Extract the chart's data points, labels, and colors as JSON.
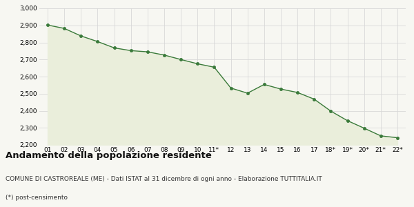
{
  "x_labels": [
    "01",
    "02",
    "03",
    "04",
    "05",
    "06",
    "07",
    "08",
    "09",
    "10",
    "11*",
    "12",
    "13",
    "14",
    "15",
    "16",
    "17",
    "18*",
    "19*",
    "20*",
    "21*",
    "22*"
  ],
  "y_values": [
    2902,
    2882,
    2838,
    2805,
    2768,
    2752,
    2745,
    2726,
    2700,
    2675,
    2655,
    2533,
    2503,
    2554,
    2527,
    2507,
    2468,
    2398,
    2342,
    2298,
    2253,
    2242
  ],
  "line_color": "#3a7a3a",
  "fill_color": "#eaeedb",
  "marker_color": "#3a7a3a",
  "bg_color": "#f7f7f2",
  "grid_color": "#d8d8d8",
  "ylim": [
    2200,
    3000
  ],
  "yticks": [
    2200,
    2300,
    2400,
    2500,
    2600,
    2700,
    2800,
    2900,
    3000
  ],
  "title": "Andamento della popolazione residente",
  "subtitle": "COMUNE DI CASTROREALE (ME) - Dati ISTAT al 31 dicembre di ogni anno - Elaborazione TUTTITALIA.IT",
  "footnote": "(*) post-censimento",
  "title_fontsize": 9.5,
  "subtitle_fontsize": 6.5,
  "footnote_fontsize": 6.5,
  "tick_fontsize": 6.5
}
